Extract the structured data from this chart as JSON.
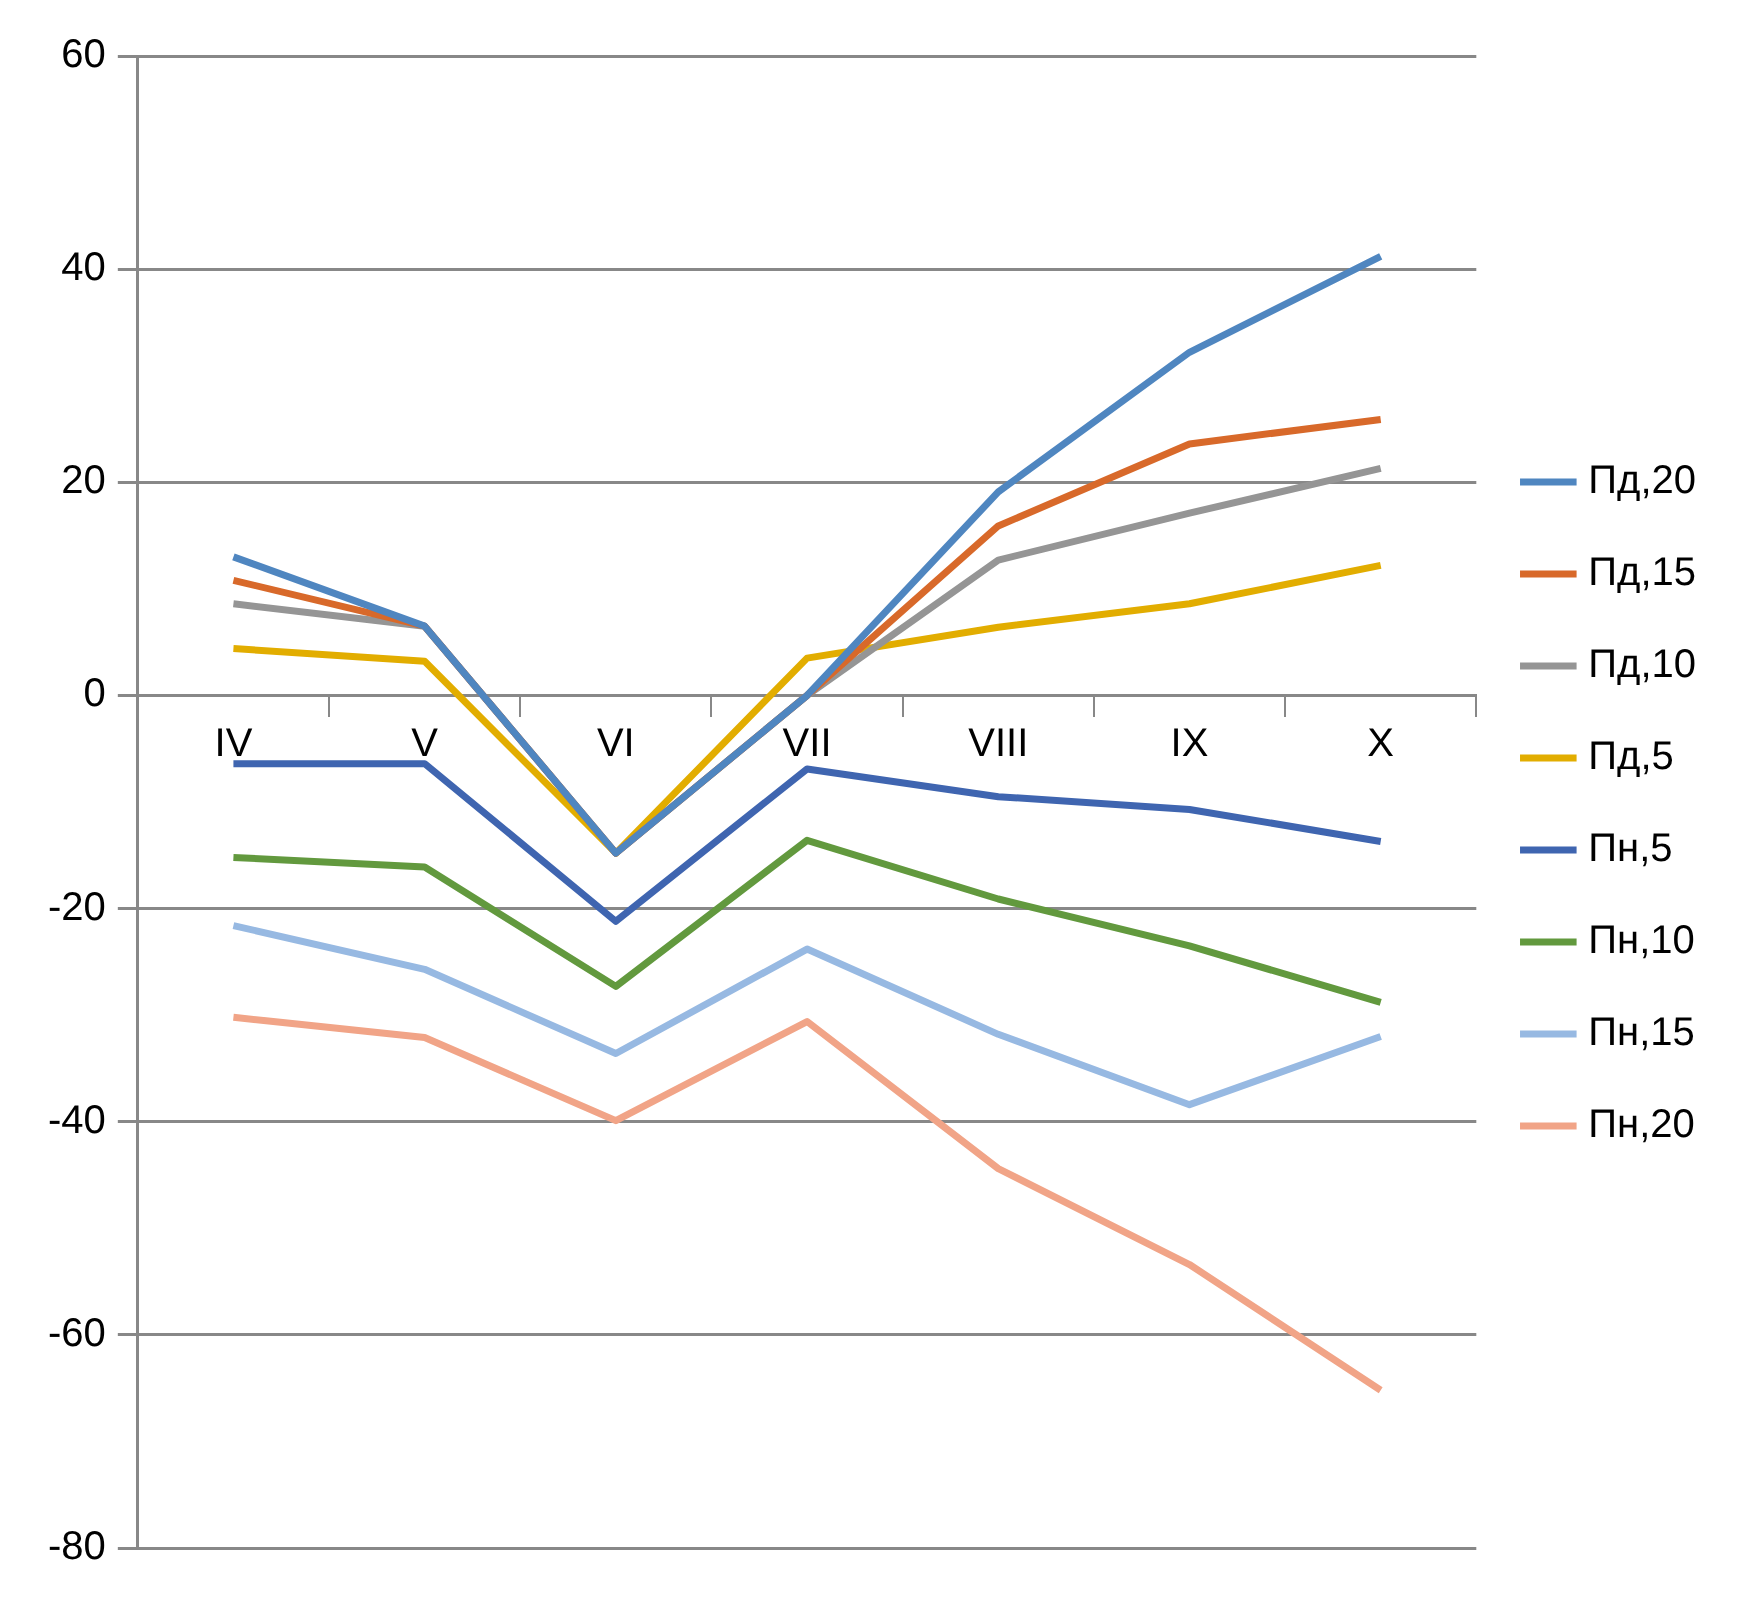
{
  "chart_data": {
    "type": "line",
    "categories": [
      "IV",
      "V",
      "VI",
      "VII",
      "VIII",
      "IX",
      "X"
    ],
    "series": [
      {
        "name": "Пд,20",
        "color": "#4f86c0",
        "values": [
          13.0,
          6.5,
          -14.8,
          0,
          19.1,
          32.2,
          41.2
        ]
      },
      {
        "name": "Пд,15",
        "color": "#d8692a",
        "values": [
          10.8,
          6.5,
          -14.8,
          0,
          15.9,
          23.6,
          25.9
        ]
      },
      {
        "name": "Пд,10",
        "color": "#959595",
        "values": [
          8.6,
          6.5,
          -14.8,
          0,
          12.7,
          17.1,
          21.3
        ]
      },
      {
        "name": "Пд,5",
        "color": "#e2ad00",
        "values": [
          4.4,
          3.2,
          -14.8,
          3.5,
          6.4,
          8.6,
          12.2
        ]
      },
      {
        "name": "Пн,5",
        "color": "#3f65b0",
        "values": [
          -6.4,
          -6.4,
          -21.2,
          -6.9,
          -9.5,
          -10.7,
          -13.7
        ]
      },
      {
        "name": "Пн,10",
        "color": "#62993e",
        "values": [
          -15.2,
          -16.1,
          -27.3,
          -13.6,
          -19.1,
          -23.5,
          -28.8
        ]
      },
      {
        "name": "Пн,15",
        "color": "#97b9e2",
        "values": [
          -21.6,
          -25.7,
          -33.6,
          -23.8,
          -31.8,
          -38.4,
          -32.0
        ]
      },
      {
        "name": "Пн,20",
        "color": "#f1a487",
        "values": [
          -30.2,
          -32.1,
          -39.9,
          -30.6,
          -44.4,
          -53.4,
          -65.2
        ]
      }
    ],
    "ylim": [
      -80,
      60
    ],
    "yticks": [
      -80,
      -60,
      -40,
      -20,
      0,
      20,
      40,
      60
    ],
    "grid": "y",
    "legend": "right",
    "marker": "none",
    "line_style": "solid"
  }
}
